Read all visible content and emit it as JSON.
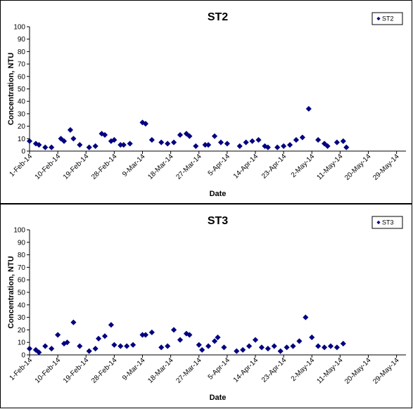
{
  "chart_data": [
    {
      "type": "scatter",
      "title": "ST2",
      "xlabel": "Date",
      "ylabel": "Concentration, NTU",
      "ylim": [
        0,
        100
      ],
      "yticks": [
        0,
        10,
        20,
        30,
        40,
        50,
        60,
        70,
        80,
        90,
        100
      ],
      "xlim": [
        "2014-02-01",
        "2014-06-01"
      ],
      "xtick_labels": [
        "1-Feb-14",
        "10-Feb-14",
        "19-Feb-14",
        "28-Feb-14",
        "9-Mar-14",
        "18-Mar-14",
        "27-Mar-14",
        "5-Apr-14",
        "14-Apr-14",
        "23-Apr-14",
        "2-May-14",
        "11-May-14",
        "20-May-14",
        "29-May-14"
      ],
      "grid": false,
      "legend_position": "top-right",
      "series": [
        {
          "name": "ST2",
          "color": "#000080",
          "marker": "diamond",
          "points": [
            [
              "2014-02-01",
              8
            ],
            [
              "2014-02-03",
              6
            ],
            [
              "2014-02-04",
              5
            ],
            [
              "2014-02-06",
              3
            ],
            [
              "2014-02-08",
              3
            ],
            [
              "2014-02-11",
              10
            ],
            [
              "2014-02-12",
              8
            ],
            [
              "2014-02-14",
              17
            ],
            [
              "2014-02-15",
              10
            ],
            [
              "2014-02-17",
              5
            ],
            [
              "2014-02-20",
              3
            ],
            [
              "2014-02-22",
              4
            ],
            [
              "2014-02-24",
              14
            ],
            [
              "2014-02-25",
              13
            ],
            [
              "2014-02-27",
              8
            ],
            [
              "2014-02-28",
              9
            ],
            [
              "2014-03-02",
              5
            ],
            [
              "2014-03-03",
              5
            ],
            [
              "2014-03-05",
              6
            ],
            [
              "2014-03-09",
              23
            ],
            [
              "2014-03-10",
              22
            ],
            [
              "2014-03-12",
              9
            ],
            [
              "2014-03-15",
              7
            ],
            [
              "2014-03-17",
              6
            ],
            [
              "2014-03-19",
              7
            ],
            [
              "2014-03-21",
              13
            ],
            [
              "2014-03-23",
              14
            ],
            [
              "2014-03-24",
              12
            ],
            [
              "2014-03-26",
              4
            ],
            [
              "2014-03-29",
              5
            ],
            [
              "2014-03-30",
              5
            ],
            [
              "2014-04-01",
              12
            ],
            [
              "2014-04-03",
              7
            ],
            [
              "2014-04-05",
              6
            ],
            [
              "2014-04-09",
              4
            ],
            [
              "2014-04-11",
              7
            ],
            [
              "2014-04-13",
              8
            ],
            [
              "2014-04-15",
              9
            ],
            [
              "2014-04-17",
              4
            ],
            [
              "2014-04-18",
              3
            ],
            [
              "2014-04-21",
              3
            ],
            [
              "2014-04-23",
              4
            ],
            [
              "2014-04-25",
              5
            ],
            [
              "2014-04-27",
              9
            ],
            [
              "2014-04-29",
              11
            ],
            [
              "2014-05-01",
              34
            ],
            [
              "2014-05-04",
              9
            ],
            [
              "2014-05-06",
              6
            ],
            [
              "2014-05-07",
              4
            ],
            [
              "2014-05-10",
              7
            ],
            [
              "2014-05-12",
              8
            ],
            [
              "2014-05-13",
              3
            ]
          ]
        }
      ]
    },
    {
      "type": "scatter",
      "title": "ST3",
      "xlabel": "Date",
      "ylabel": "Concentration, NTU",
      "ylim": [
        0,
        100
      ],
      "yticks": [
        0,
        10,
        20,
        30,
        40,
        50,
        60,
        70,
        80,
        90,
        100
      ],
      "xlim": [
        "2014-02-01",
        "2014-06-01"
      ],
      "xtick_labels": [
        "1-Feb-14",
        "10-Feb-14",
        "19-Feb-14",
        "28-Feb-14",
        "9-Mar-14",
        "18-Mar-14",
        "27-Mar-14",
        "5-Apr-14",
        "14-Apr-14",
        "23-Apr-14",
        "2-May-14",
        "11-May-14",
        "20-May-14",
        "29-May-14"
      ],
      "grid": false,
      "legend_position": "top-right",
      "series": [
        {
          "name": "ST3",
          "color": "#000080",
          "marker": "diamond",
          "points": [
            [
              "2014-02-01",
              5
            ],
            [
              "2014-02-03",
              4
            ],
            [
              "2014-02-04",
              2
            ],
            [
              "2014-02-06",
              7
            ],
            [
              "2014-02-08",
              5
            ],
            [
              "2014-02-10",
              16
            ],
            [
              "2014-02-12",
              9
            ],
            [
              "2014-02-13",
              10
            ],
            [
              "2014-02-15",
              26
            ],
            [
              "2014-02-17",
              7
            ],
            [
              "2014-02-20",
              3
            ],
            [
              "2014-02-22",
              5
            ],
            [
              "2014-02-23",
              13
            ],
            [
              "2014-02-25",
              15
            ],
            [
              "2014-02-27",
              24
            ],
            [
              "2014-02-28",
              8
            ],
            [
              "2014-03-02",
              7
            ],
            [
              "2014-03-04",
              7
            ],
            [
              "2014-03-06",
              8
            ],
            [
              "2014-03-09",
              16
            ],
            [
              "2014-03-10",
              16
            ],
            [
              "2014-03-12",
              18
            ],
            [
              "2014-03-15",
              6
            ],
            [
              "2014-03-17",
              7
            ],
            [
              "2014-03-19",
              20
            ],
            [
              "2014-03-21",
              12
            ],
            [
              "2014-03-23",
              17
            ],
            [
              "2014-03-24",
              16
            ],
            [
              "2014-03-27",
              8
            ],
            [
              "2014-03-28",
              4
            ],
            [
              "2014-03-30",
              7
            ],
            [
              "2014-04-01",
              11
            ],
            [
              "2014-04-02",
              14
            ],
            [
              "2014-04-04",
              6
            ],
            [
              "2014-04-08",
              3
            ],
            [
              "2014-04-10",
              4
            ],
            [
              "2014-04-12",
              7
            ],
            [
              "2014-04-14",
              12
            ],
            [
              "2014-04-16",
              6
            ],
            [
              "2014-04-18",
              5
            ],
            [
              "2014-04-20",
              7
            ],
            [
              "2014-04-22",
              3
            ],
            [
              "2014-04-24",
              6
            ],
            [
              "2014-04-26",
              7
            ],
            [
              "2014-04-28",
              11
            ],
            [
              "2014-04-30",
              30
            ],
            [
              "2014-05-02",
              14
            ],
            [
              "2014-05-04",
              7
            ],
            [
              "2014-05-06",
              6
            ],
            [
              "2014-05-08",
              7
            ],
            [
              "2014-05-10",
              6
            ],
            [
              "2014-05-12",
              9
            ]
          ]
        }
      ]
    }
  ]
}
